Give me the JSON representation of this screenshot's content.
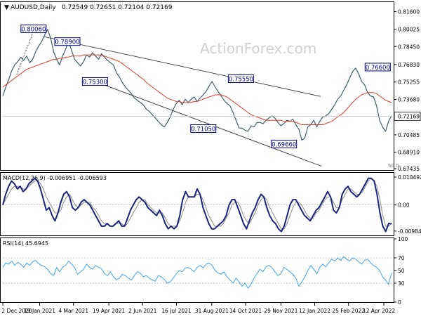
{
  "header": {
    "symbol_label": "AUDUSD,Daily",
    "ohlc": "0.72549 0.72651 0.72104 0.72169"
  },
  "watermark": "ActionForex.com",
  "colors": {
    "price": "#3f5f6f",
    "ma": "#e23a30",
    "trend": "#333333",
    "macd": "#1a237e",
    "signal": "#8a8a8a",
    "rsi": "#3ea6e8",
    "label_border": "#00008b",
    "label_text": "#00008b",
    "current_bg": "#ffffff",
    "grid": "#bfbfbf",
    "level_line": "#c8c8c8"
  },
  "chart_data": [
    {
      "type": "line",
      "name": "price-panel",
      "ylim": [
        0.67435,
        0.824
      ],
      "yticks": [
        "0.81600",
        "0.80025",
        "0.78450",
        "0.76830",
        "0.75255",
        "0.73680",
        "0.72169",
        "0.70485",
        "0.68910",
        "0.67435"
      ],
      "current_value": "0.72169",
      "right_note": "50.0",
      "annotations": [
        {
          "label": "0.80060",
          "x": "11 Jan 2021",
          "y": 0.8006
        },
        {
          "label": "0.78900",
          "x": "24 Feb 2021",
          "y": 0.789
        },
        {
          "label": "0.75300",
          "x": "1 Apr 2021",
          "y": 0.753
        },
        {
          "label": "0.75550",
          "x": "8 Oct 2021",
          "y": 0.7555
        },
        {
          "label": "0.71050",
          "x": "20 Aug 2021",
          "y": 0.7105
        },
        {
          "label": "0.69660",
          "x": "3 Dec 2021",
          "y": 0.6966
        },
        {
          "label": "0.76600",
          "x": "4 Apr 2022",
          "y": 0.766
        }
      ],
      "series": [
        {
          "values": [
            0.74,
            0.748,
            0.755,
            0.763,
            0.768,
            0.771,
            0.775,
            0.772,
            0.776,
            0.77,
            0.773,
            0.78,
            0.785,
            0.789,
            0.795,
            0.8,
            0.792,
            0.78,
            0.773,
            0.768,
            0.776,
            0.782,
            0.789,
            0.781,
            0.773,
            0.77,
            0.767,
            0.771,
            0.777,
            0.775,
            0.779,
            0.776,
            0.773,
            0.778,
            0.775,
            0.772,
            0.77,
            0.768,
            0.761,
            0.757,
            0.752,
            0.748,
            0.745,
            0.742,
            0.738,
            0.736,
            0.734,
            0.732,
            0.728,
            0.726,
            0.723,
            0.72,
            0.717,
            0.714,
            0.712,
            0.716,
            0.721,
            0.728,
            0.733,
            0.736,
            0.732,
            0.737,
            0.734,
            0.737,
            0.739,
            0.735,
            0.738,
            0.741,
            0.744,
            0.749,
            0.753,
            0.748,
            0.744,
            0.74,
            0.736,
            0.733,
            0.731,
            0.725,
            0.718,
            0.711,
            0.711,
            0.709,
            0.708,
            0.713,
            0.712,
            0.716,
            0.716,
            0.715,
            0.718,
            0.72,
            0.722,
            0.72,
            0.716,
            0.713,
            0.715,
            0.718,
            0.717,
            0.719,
            0.714,
            0.71,
            0.7,
            0.702,
            0.712,
            0.714,
            0.718,
            0.712,
            0.717,
            0.721,
            0.722,
            0.724,
            0.728,
            0.732,
            0.737,
            0.74,
            0.745,
            0.75,
            0.756,
            0.762,
            0.765,
            0.76,
            0.753,
            0.75,
            0.743,
            0.74,
            0.739,
            0.731,
            0.718,
            0.712,
            0.708,
            0.717,
            0.722
          ]
        },
        {
          "values": [
            0.748,
            0.75,
            0.752,
            0.754,
            0.756,
            0.758,
            0.76,
            0.762,
            0.764,
            0.765,
            0.766,
            0.767,
            0.768,
            0.769,
            0.77,
            0.771,
            0.772,
            0.773,
            0.773,
            0.774,
            0.774,
            0.775,
            0.775,
            0.776,
            0.776,
            0.776,
            0.776,
            0.777,
            0.777,
            0.777,
            0.777,
            0.777,
            0.777,
            0.776,
            0.776,
            0.775,
            0.774,
            0.773,
            0.772,
            0.771,
            0.769,
            0.767,
            0.765,
            0.763,
            0.761,
            0.759,
            0.757,
            0.755,
            0.752,
            0.75,
            0.748,
            0.746,
            0.744,
            0.742,
            0.74,
            0.738,
            0.737,
            0.736,
            0.735,
            0.735,
            0.734,
            0.734,
            0.734,
            0.734,
            0.735,
            0.735,
            0.736,
            0.737,
            0.738,
            0.739,
            0.74,
            0.741,
            0.741,
            0.741,
            0.74,
            0.739,
            0.737,
            0.735,
            0.733,
            0.731,
            0.729,
            0.727,
            0.725,
            0.723,
            0.722,
            0.721,
            0.72,
            0.719,
            0.718,
            0.718,
            0.718,
            0.718,
            0.718,
            0.718,
            0.717,
            0.717,
            0.717,
            0.717,
            0.716,
            0.715,
            0.714,
            0.714,
            0.714,
            0.714,
            0.714,
            0.714,
            0.714,
            0.714,
            0.715,
            0.716,
            0.717,
            0.719,
            0.721,
            0.723,
            0.725,
            0.728,
            0.731,
            0.734,
            0.737,
            0.739,
            0.741,
            0.742,
            0.743,
            0.743,
            0.743,
            0.742,
            0.74,
            0.738,
            0.736,
            0.735,
            0.734
          ]
        }
      ]
    },
    {
      "type": "line",
      "name": "macd-panel",
      "header": "MACD(12,26,9) -0.006951 -0.006593",
      "ylim": [
        -0.0112,
        0.0118
      ],
      "yticks": [
        "0.010492",
        "0.00",
        "-0.009842"
      ],
      "series": [
        {
          "values": [
            0.0,
            0.004,
            0.007,
            0.009,
            0.008,
            0.006,
            0.007,
            0.005,
            0.006,
            0.008,
            0.009,
            0.01,
            0.009,
            0.006,
            0.002,
            -0.002,
            -0.001,
            -0.004,
            -0.006,
            -0.003,
            0.001,
            0.004,
            0.005,
            0.003,
            -0.001,
            -0.002,
            -0.001,
            0.001,
            0.002,
            0.001,
            0.0,
            -0.002,
            -0.004,
            -0.006,
            -0.008,
            -0.008,
            -0.007,
            -0.008,
            -0.008,
            -0.007,
            -0.006,
            -0.008,
            -0.008,
            -0.005,
            -0.002,
            0.0,
            0.002,
            0.003,
            0.002,
            0.001,
            -0.001,
            -0.002,
            -0.003,
            -0.004,
            -0.002,
            -0.004,
            -0.007,
            -0.009,
            -0.008,
            -0.009,
            -0.008,
            -0.004,
            0.002,
            0.005,
            0.003,
            0.003,
            0.003,
            0.006,
            0.004,
            -0.001,
            -0.004,
            -0.007,
            -0.009,
            -0.009,
            -0.008,
            -0.007,
            -0.006,
            -0.004,
            0.0,
            0.002,
            0.002,
            -0.001,
            -0.004,
            -0.007,
            -0.009,
            -0.006,
            -0.003,
            -0.001,
            0.002,
            0.004,
            0.003,
            -0.001,
            -0.004,
            -0.006,
            -0.007,
            -0.009,
            -0.01,
            -0.008,
            -0.004,
            0.0,
            0.002,
            0.002,
            0.0,
            -0.002,
            -0.004,
            -0.005,
            -0.006,
            -0.004,
            -0.002,
            -0.001,
            0.001,
            0.003,
            0.005,
            0.003,
            -0.002,
            -0.003,
            -0.001,
            0.004,
            0.006,
            0.007,
            0.005,
            0.004,
            0.003,
            0.004,
            0.006,
            0.008,
            0.01,
            0.01,
            0.009,
            0.004,
            -0.003,
            -0.008,
            -0.01,
            -0.007,
            -0.007
          ]
        },
        {
          "values": [
            0.0,
            0.002,
            0.004,
            0.006,
            0.007,
            0.007,
            0.007,
            0.006,
            0.006,
            0.007,
            0.008,
            0.009,
            0.009,
            0.008,
            0.006,
            0.003,
            0.001,
            -0.001,
            -0.003,
            -0.003,
            -0.002,
            0.001,
            0.003,
            0.004,
            0.002,
            0.0,
            -0.001,
            0.0,
            0.001,
            0.001,
            0.001,
            -0.001,
            -0.002,
            -0.004,
            -0.006,
            -0.007,
            -0.007,
            -0.008,
            -0.008,
            -0.007,
            -0.007,
            -0.007,
            -0.008,
            -0.007,
            -0.005,
            -0.003,
            -0.001,
            0.001,
            0.002,
            0.002,
            0.0,
            -0.001,
            -0.002,
            -0.003,
            -0.003,
            -0.003,
            -0.005,
            -0.007,
            -0.008,
            -0.008,
            -0.008,
            -0.006,
            -0.003,
            0.001,
            0.003,
            0.003,
            0.003,
            0.004,
            0.004,
            0.002,
            -0.001,
            -0.004,
            -0.006,
            -0.008,
            -0.008,
            -0.008,
            -0.007,
            -0.005,
            -0.003,
            0.0,
            0.001,
            0.001,
            -0.001,
            -0.004,
            -0.006,
            -0.007,
            -0.005,
            -0.003,
            0.0,
            0.002,
            0.003,
            0.002,
            -0.001,
            -0.003,
            -0.005,
            -0.007,
            -0.009,
            -0.009,
            -0.007,
            -0.004,
            -0.001,
            0.001,
            0.001,
            0.0,
            -0.002,
            -0.004,
            -0.005,
            -0.005,
            -0.003,
            -0.002,
            0.0,
            0.002,
            0.003,
            0.003,
            0.001,
            -0.001,
            -0.001,
            0.002,
            0.004,
            0.006,
            0.006,
            0.005,
            0.004,
            0.004,
            0.005,
            0.007,
            0.009,
            0.01,
            0.009,
            0.007,
            0.002,
            -0.004,
            -0.008,
            -0.008,
            -0.007
          ]
        }
      ]
    },
    {
      "type": "line",
      "name": "rsi-panel",
      "header": "RSI(14) 45.6945",
      "ylim": [
        0,
        100
      ],
      "yticks": [
        "100",
        "70",
        "50",
        "30",
        "0"
      ],
      "series": [
        {
          "values": [
            55,
            62,
            60,
            65,
            58,
            63,
            60,
            55,
            62,
            58,
            64,
            66,
            61,
            58,
            56,
            52,
            45,
            42,
            55,
            48,
            55,
            58,
            65,
            60,
            55,
            44,
            48,
            52,
            60,
            55,
            52,
            58,
            55,
            53,
            45,
            42,
            48,
            40,
            35,
            38,
            44,
            42,
            38,
            35,
            42,
            48,
            46,
            40,
            42,
            38,
            35,
            33,
            42,
            40,
            36,
            30,
            32,
            38,
            45,
            50,
            48,
            54,
            55,
            52,
            48,
            55,
            58,
            54,
            60,
            62,
            58,
            50,
            46,
            44,
            48,
            40,
            35,
            30,
            38,
            32,
            25,
            30,
            22,
            28,
            38,
            45,
            52,
            48,
            56,
            58,
            55,
            48,
            42,
            45,
            55,
            52,
            48,
            44,
            38,
            25,
            32,
            40,
            50,
            58,
            52,
            45,
            55,
            60,
            56,
            62,
            68,
            65,
            70,
            66,
            72,
            68,
            65,
            70,
            68,
            64,
            60,
            66,
            68,
            62,
            58,
            55,
            50,
            40,
            35,
            28,
            46
          ]
        }
      ]
    }
  ],
  "x_axis_labels": [
    "2 Dec 2020",
    "19 Jan 2021",
    "4 Mar 2021",
    "19 Apr 2021",
    "2 Jun 2021",
    "16 Jul 2021",
    "31 Aug 2021",
    "14 Oct 2021",
    "29 Nov 2021",
    "12 Jan 2022",
    "25 Feb 2022",
    "12 Apr 2022"
  ]
}
